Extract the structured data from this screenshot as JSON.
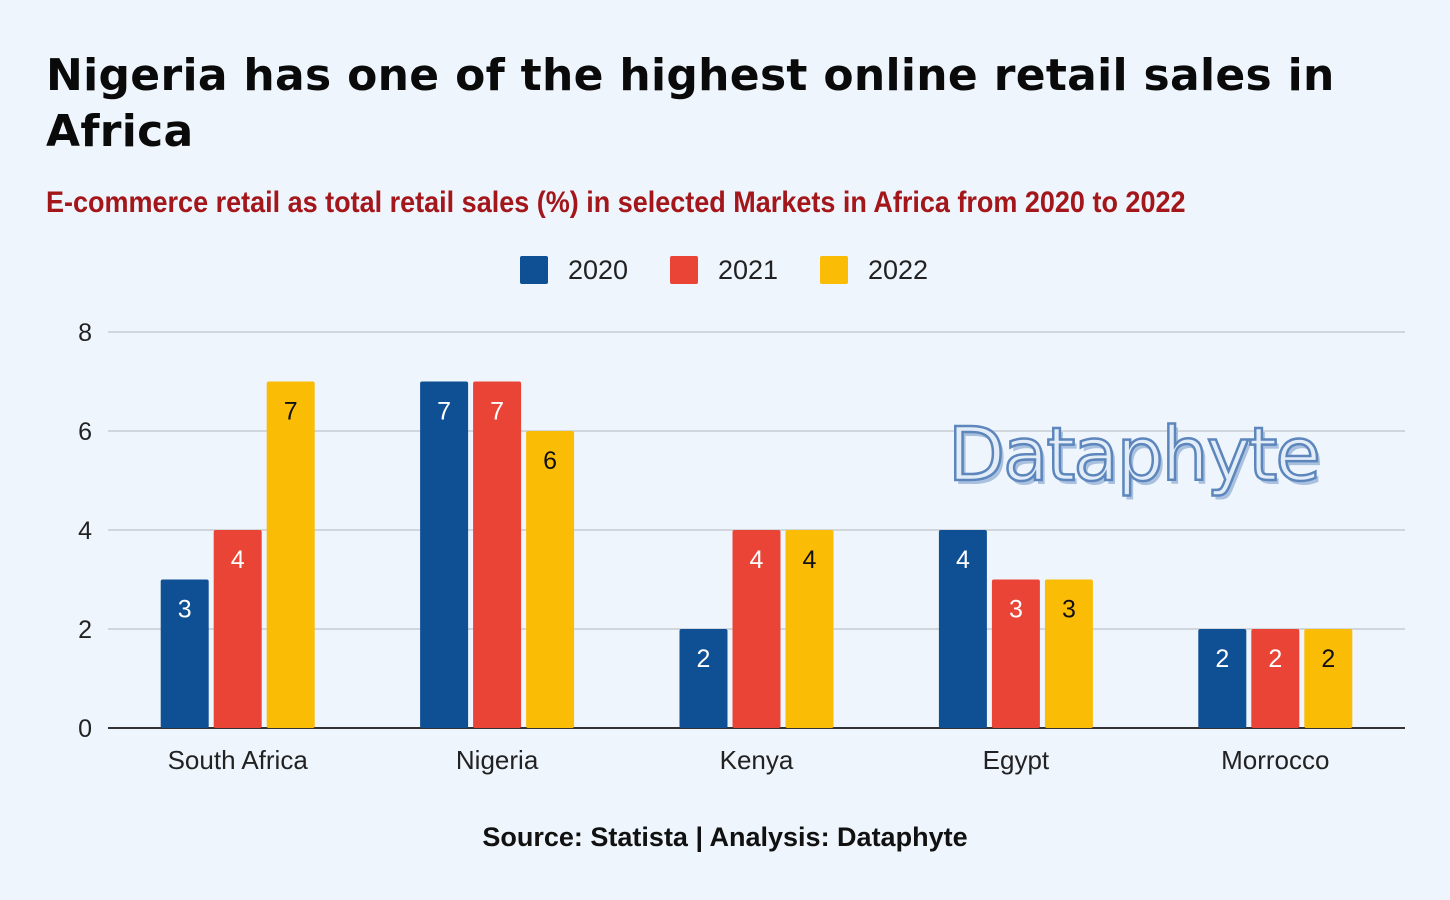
{
  "header": {
    "title": "Nigeria has one of the highest online retail sales in Africa",
    "subtitle": "E-commerce retail as total retail sales (%) in selected Markets in Africa from 2020 to 2022"
  },
  "watermark": "Dataphyte",
  "footer": {
    "source": "Source: Statista | Analysis: Dataphyte"
  },
  "colors": {
    "2020": "#0f4f93",
    "2021": "#e94435",
    "2022": "#fbbc05",
    "grid": "#c7ccd2",
    "axis": "#333333"
  },
  "chart_data": {
    "type": "bar",
    "title": "Nigeria has one of the highest online retail sales in Africa",
    "subtitle": "E-commerce retail as total retail sales (%) in selected Markets in Africa from 2020 to 2022",
    "categories": [
      "South Africa",
      "Nigeria",
      "Kenya",
      "Egypt",
      "Morrocco"
    ],
    "series": [
      {
        "name": "2020",
        "values": [
          3,
          7,
          2,
          4,
          2
        ]
      },
      {
        "name": "2021",
        "values": [
          4,
          7,
          4,
          3,
          2
        ]
      },
      {
        "name": "2022",
        "values": [
          7,
          6,
          4,
          3,
          2
        ]
      }
    ],
    "ylim": [
      0,
      8
    ],
    "yticks": [
      0,
      2,
      4,
      6,
      8
    ],
    "grid": true,
    "legend_position": "top-center",
    "data_labels": true
  }
}
